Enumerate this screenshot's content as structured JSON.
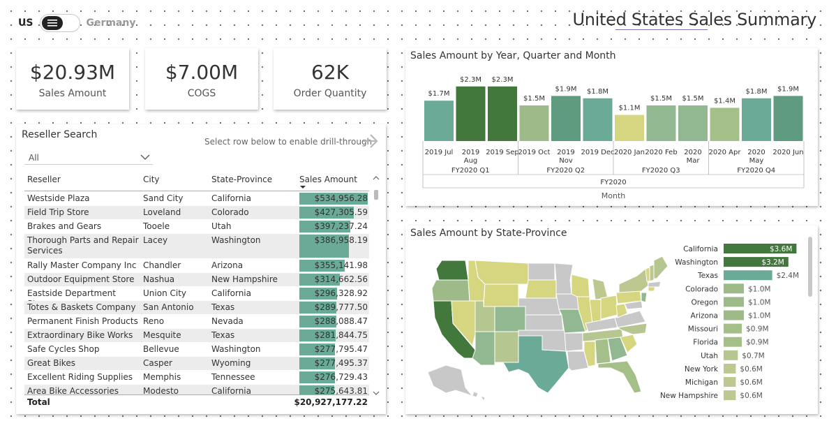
{
  "toggle": {
    "left_label": "US",
    "right_label": "Germany"
  },
  "page_title": "United States Sales Summary",
  "kpis": [
    {
      "value": "$20.93M",
      "label": "Sales Amount"
    },
    {
      "value": "$7.00M",
      "label": "COGS"
    },
    {
      "value": "62K",
      "label": "Order Quantity"
    }
  ],
  "reseller_search": {
    "title": "Reseller Search",
    "slicer_value": "All",
    "drillthrough_hint": "Select row below to enable drill-through",
    "columns": [
      "Reseller",
      "City",
      "State-Province",
      "Sales Amount"
    ],
    "rows": [
      {
        "reseller": "Westside Plaza",
        "city": "Sand City",
        "state": "California",
        "sales": "$534,956.28",
        "value": 534956.28
      },
      {
        "reseller": "Field Trip Store",
        "city": "Loveland",
        "state": "Colorado",
        "sales": "$427,305.59",
        "value": 427305.59
      },
      {
        "reseller": "Brakes and Gears",
        "city": "Tooele",
        "state": "Utah",
        "sales": "$397,237.24",
        "value": 397237.24
      },
      {
        "reseller": "Thorough Parts and Repair Services",
        "city": "Lacey",
        "state": "Washington",
        "sales": "$386,958.19",
        "value": 386958.19
      },
      {
        "reseller": "Rally Master Company Inc",
        "city": "Chandler",
        "state": "Arizona",
        "sales": "$355,141.98",
        "value": 355141.98
      },
      {
        "reseller": "Outdoor Equipment Store",
        "city": "Nashua",
        "state": "New Hampshire",
        "sales": "$314,662.56",
        "value": 314662.56
      },
      {
        "reseller": "Eastside Department Store",
        "city": "Union City",
        "state": "California",
        "sales": "$296,328.92",
        "value": 296328.92
      },
      {
        "reseller": "Totes & Baskets Company",
        "city": "San Antonio",
        "state": "Texas",
        "sales": "$289,777.50",
        "value": 289777.5
      },
      {
        "reseller": "Permanent Finish Products",
        "city": "Reno",
        "state": "Nevada",
        "sales": "$288,088.47",
        "value": 288088.47
      },
      {
        "reseller": "Extraordinary Bike Works",
        "city": "Mesquite",
        "state": "Texas",
        "sales": "$281,844.75",
        "value": 281844.75
      },
      {
        "reseller": "Safe Cycles Shop",
        "city": "Bellevue",
        "state": "Washington",
        "sales": "$277,795.47",
        "value": 277795.47
      },
      {
        "reseller": "Great Bikes",
        "city": "Casper",
        "state": "Wyoming",
        "sales": "$277,495.37",
        "value": 277495.37
      },
      {
        "reseller": "Excellent Riding Supplies",
        "city": "Memphis",
        "state": "Tennessee",
        "sales": "$276,729.43",
        "value": 276729.43
      },
      {
        "reseller": "Area Bike Accessories",
        "city": "Modesto",
        "state": "California",
        "sales": "$275,643.81",
        "value": 275643.81
      }
    ],
    "total_label": "Total",
    "total_value": "$20,927,177.22"
  },
  "column_chart": {
    "title": "Sales Amount by Year, Quarter and Month",
    "axis_title": "Month",
    "year_label": "FY2020",
    "quarters": [
      {
        "label": "FY2020 Q1",
        "months": 3
      },
      {
        "label": "FY2020 Q2",
        "months": 3
      },
      {
        "label": "FY2020 Q3",
        "months": 3
      },
      {
        "label": "FY2020 Q4",
        "months": 3
      }
    ]
  },
  "map_chart": {
    "title": "Sales Amount by State-Province"
  },
  "chart_data": [
    {
      "type": "bar",
      "title": "Sales Amount by Year, Quarter and Month",
      "xlabel": "Month",
      "categories": [
        "2019 Jul",
        "2019 Aug",
        "2019 Sep",
        "2019 Oct",
        "2019 Nov",
        "2019 Dec",
        "2020 Jan",
        "2020 Feb",
        "2020 Mar",
        "2020 Apr",
        "2020 May",
        "2020 Jun"
      ],
      "values": [
        1.7,
        2.3,
        2.3,
        1.5,
        1.9,
        1.8,
        1.1,
        1.5,
        1.5,
        1.4,
        1.8,
        1.9
      ],
      "value_labels": [
        "$1.7M",
        "$2.3M",
        "$2.3M",
        "$1.5M",
        "$1.9M",
        "$1.8M",
        "$1.1M",
        "$1.5M",
        "$1.5M",
        "$1.4M",
        "$1.8M",
        "$1.9M"
      ],
      "colors": [
        "#6aaa96",
        "#42783c",
        "#42783c",
        "#9dba88",
        "#5f9b7e",
        "#6aaa96",
        "#d6d580",
        "#91b890",
        "#91b890",
        "#a4c088",
        "#6aaa96",
        "#5f9b7e"
      ],
      "ylim": [
        0,
        2.5
      ]
    },
    {
      "type": "bar",
      "orientation": "horizontal",
      "title": "Sales Amount by State-Province",
      "categories": [
        "California",
        "Washington",
        "Texas",
        "Colorado",
        "Oregon",
        "Arizona",
        "Missouri",
        "Florida",
        "Utah",
        "New York",
        "Michigan",
        "New Hampshire"
      ],
      "values": [
        3.6,
        3.2,
        2.4,
        1.0,
        1.0,
        1.0,
        0.9,
        0.9,
        0.7,
        0.6,
        0.6,
        0.6
      ],
      "value_labels": [
        "$3.6M",
        "$3.2M",
        "$2.4M",
        "$1.0M",
        "$1.0M",
        "$1.0M",
        "$0.9M",
        "$0.9M",
        "$0.7M",
        "$0.6M",
        "$0.6M",
        "$0.6M"
      ],
      "colors": [
        "#42783c",
        "#42783c",
        "#6aaa96",
        "#9dba88",
        "#9dba88",
        "#9dba88",
        "#a4c088",
        "#a4c088",
        "#b6c690",
        "#bcc890",
        "#bcc890",
        "#bcc890"
      ]
    }
  ],
  "colors": {
    "accent_dark_green": "#42783c",
    "teal": "#6aaa96",
    "yellow": "#d6d580",
    "gray_no_data": "#c8c8c8"
  }
}
